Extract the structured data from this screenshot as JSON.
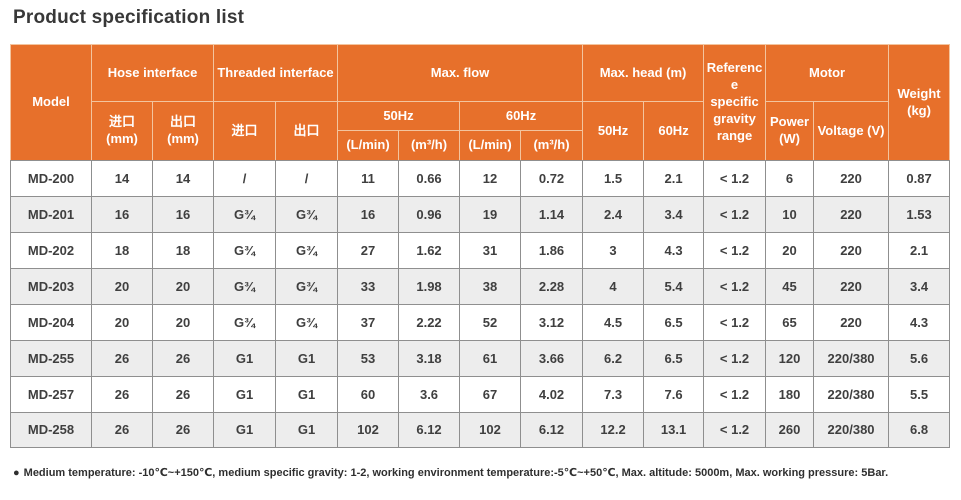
{
  "page_title": "Product specification list",
  "colors": {
    "header_bg": "#E7702B",
    "header_border": "#F3C49E",
    "header_text": "#FFFFFF",
    "body_border": "#8F8F8F",
    "alt_row": "#EDEDED",
    "text": "#3F3F3F",
    "title": "#383838",
    "note": "#2F2F2F"
  },
  "table": {
    "header": {
      "model": "Model",
      "hose_interface": "Hose interface",
      "threaded_interface": "Threaded interface",
      "max_flow": "Max. flow",
      "max_head": "Max. head (m)",
      "reference_sg": "Reference specific gravity range",
      "motor": "Motor",
      "weight": "Weight (kg)",
      "inlet_mm": "进口 (mm)",
      "outlet_mm": "出口 (mm)",
      "inlet": "进口",
      "outlet": "出口",
      "hz50": "50Hz",
      "hz60": "60Hz",
      "l_min": "(L/min)",
      "m3_h": "(m³/h)",
      "power_w": "Power (W)",
      "voltage_v": "Voltage (V)"
    },
    "rows": [
      [
        "MD-200",
        "14",
        "14",
        "/",
        "/",
        "11",
        "0.66",
        "12",
        "0.72",
        "1.5",
        "2.1",
        "< 1.2",
        "6",
        "220",
        "0.87"
      ],
      [
        "MD-201",
        "16",
        "16",
        "G¾",
        "G¾",
        "16",
        "0.96",
        "19",
        "1.14",
        "2.4",
        "3.4",
        "< 1.2",
        "10",
        "220",
        "1.53"
      ],
      [
        "MD-202",
        "18",
        "18",
        "G¾",
        "G¾",
        "27",
        "1.62",
        "31",
        "1.86",
        "3",
        "4.3",
        "< 1.2",
        "20",
        "220",
        "2.1"
      ],
      [
        "MD-203",
        "20",
        "20",
        "G¾",
        "G¾",
        "33",
        "1.98",
        "38",
        "2.28",
        "4",
        "5.4",
        "< 1.2",
        "45",
        "220",
        "3.4"
      ],
      [
        "MD-204",
        "20",
        "20",
        "G¾",
        "G¾",
        "37",
        "2.22",
        "52",
        "3.12",
        "4.5",
        "6.5",
        "< 1.2",
        "65",
        "220",
        "4.3"
      ],
      [
        "MD-255",
        "26",
        "26",
        "G1",
        "G1",
        "53",
        "3.18",
        "61",
        "3.66",
        "6.2",
        "6.5",
        "< 1.2",
        "120",
        "220/380",
        "5.6"
      ],
      [
        "MD-257",
        "26",
        "26",
        "G1",
        "G1",
        "60",
        "3.6",
        "67",
        "4.02",
        "7.3",
        "7.6",
        "< 1.2",
        "180",
        "220/380",
        "5.5"
      ],
      [
        "MD-258",
        "26",
        "26",
        "G1",
        "G1",
        "102",
        "6.12",
        "102",
        "6.12",
        "12.2",
        "13.1",
        "< 1.2",
        "260",
        "220/380",
        "6.8"
      ]
    ]
  },
  "footnote": {
    "bullet": "●",
    "text": "Medium temperature: -10℃~+150℃, medium specific gravity: 1-2, working environment temperature:-5℃~+50℃, Max. altitude: 5000m, Max. working pressure: 5Bar."
  }
}
